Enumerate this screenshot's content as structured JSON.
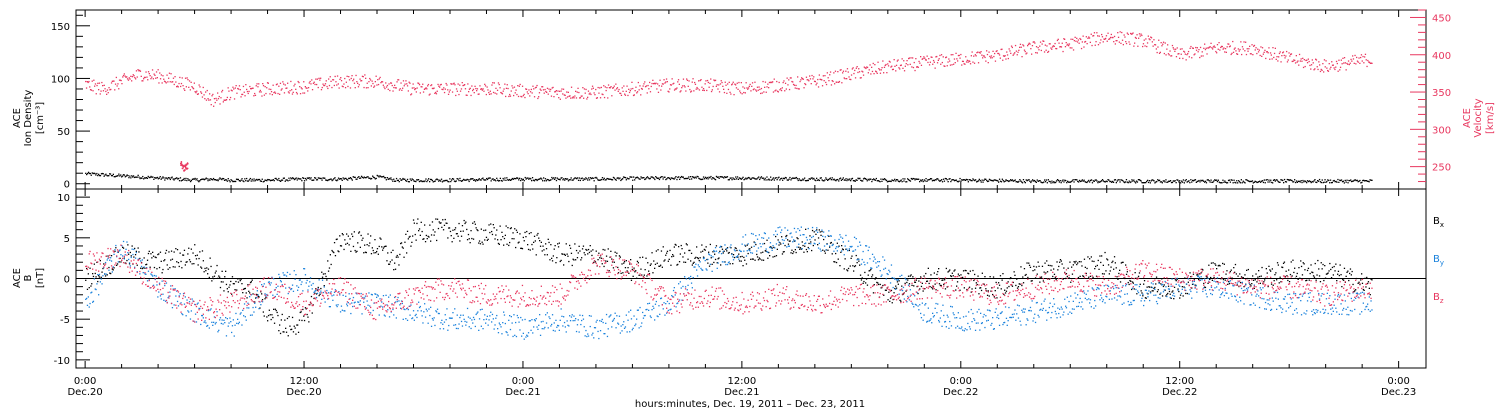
{
  "chart_data": [
    {
      "type": "scatter",
      "panel": "top",
      "ylabel_left": [
        "ACE",
        "Ion Density",
        "[cm⁻³]"
      ],
      "ylabel_right": [
        "ACE",
        "Velocity",
        "[km/s]"
      ],
      "ylim_left": [
        -5,
        165
      ],
      "ylim_right": [
        220,
        460
      ],
      "yticks_left": [
        "0",
        "50",
        "100",
        "150"
      ],
      "yticks_right": [
        "250",
        "300",
        "350",
        "400",
        "450"
      ],
      "series": [
        {
          "color": "#000000",
          "axis": "left",
          "x_hours": [
            0,
            2,
            4,
            5,
            6,
            7,
            8,
            10,
            12,
            14,
            16,
            17,
            18,
            20,
            24,
            28,
            32,
            36,
            40,
            44,
            48,
            52,
            56,
            60,
            64,
            68,
            70.5
          ],
          "y": [
            10,
            8,
            6,
            5,
            4,
            5,
            4,
            4,
            5,
            5,
            7,
            4,
            4,
            4,
            5,
            5,
            6,
            6,
            5,
            4,
            4,
            3,
            3,
            3,
            3,
            3,
            3
          ]
        },
        {
          "color": "#e8375f",
          "axis": "right",
          "x_hours": [
            0,
            1,
            2,
            3,
            4,
            5,
            6,
            7,
            8,
            10,
            12,
            14,
            16,
            17,
            18,
            20,
            22,
            24,
            26,
            28,
            30,
            32,
            34,
            36,
            38,
            40,
            42,
            44,
            46,
            48,
            50,
            52,
            54,
            56,
            58,
            60,
            62,
            64,
            66,
            68,
            70.5
          ],
          "y": [
            360,
            355,
            365,
            375,
            372,
            365,
            358,
            340,
            350,
            355,
            358,
            365,
            365,
            360,
            355,
            355,
            355,
            352,
            350,
            350,
            355,
            360,
            360,
            355,
            360,
            365,
            375,
            385,
            390,
            395,
            400,
            410,
            415,
            425,
            420,
            400,
            410,
            410,
            395,
            385,
            395
          ]
        },
        {
          "color": "#e8375f",
          "axis": "left",
          "x_hours": [
            5.2,
            5.4,
            5.6
          ],
          "y": [
            20,
            15,
            18
          ]
        }
      ]
    },
    {
      "type": "scatter",
      "panel": "bottom",
      "ylabel_left": [
        "ACE",
        "B",
        "[nT]"
      ],
      "ylim": [
        -11,
        11
      ],
      "yticks": [
        "10",
        "5",
        "0",
        "-5",
        "-10"
      ],
      "zero_line": true,
      "series": [
        {
          "name": "Bx",
          "color": "#000000",
          "x_hours": [
            0,
            2,
            4,
            6,
            8,
            9,
            10,
            11,
            12,
            14,
            16,
            17,
            18,
            20,
            24,
            26,
            28,
            30,
            32,
            34,
            36,
            38,
            40,
            42,
            44,
            46,
            48,
            50,
            52,
            54,
            56,
            58,
            60,
            62,
            64,
            66,
            68,
            70.5
          ],
          "y": [
            0,
            3,
            2,
            3,
            -1,
            -1,
            -4,
            -6,
            -5,
            5,
            4,
            2,
            6,
            6,
            5,
            3,
            3,
            1,
            3,
            3,
            3,
            4,
            5,
            2,
            -2,
            0,
            0,
            -1,
            1,
            1,
            2,
            -1,
            -1,
            1,
            0,
            1,
            1,
            -1
          ]
        },
        {
          "name": "By",
          "color": "#1a82dc",
          "x_hours": [
            0,
            2,
            4,
            6,
            8,
            10,
            12,
            14,
            16,
            18,
            20,
            22,
            24,
            26,
            28,
            30,
            32,
            34,
            36,
            38,
            40,
            42,
            44,
            46,
            48,
            50,
            52,
            54,
            56,
            58,
            60,
            62,
            64,
            66,
            68,
            70.5
          ],
          "y": [
            -3,
            4,
            -1,
            -4,
            -6,
            -1,
            0,
            -3,
            -3,
            -4,
            -5,
            -5,
            -6,
            -5,
            -6,
            -5,
            -3,
            2,
            4,
            5,
            5,
            4,
            1,
            -4,
            -5,
            -5,
            -4,
            -3,
            -2,
            -2,
            -1,
            -1,
            -2,
            -3,
            -3,
            -3
          ]
        },
        {
          "name": "Bz",
          "color": "#e8375f",
          "x_hours": [
            0,
            2,
            4,
            6,
            8,
            10,
            12,
            14,
            16,
            18,
            20,
            22,
            24,
            26,
            28,
            30,
            32,
            34,
            36,
            38,
            40,
            42,
            44,
            46,
            48,
            50,
            52,
            54,
            56,
            58,
            60,
            62,
            64,
            66,
            68,
            70.5
          ],
          "y": [
            2,
            3,
            -1,
            -4,
            -3,
            -1,
            -3,
            -1,
            -4,
            -2,
            -1,
            -2,
            -2,
            -2,
            2,
            1,
            -3,
            -2,
            -3,
            -2,
            -3,
            -2,
            -2,
            -1,
            -1,
            -2,
            -1,
            0,
            -1,
            1,
            0,
            0,
            -1,
            -1,
            -2,
            -1
          ]
        }
      ],
      "legend": [
        "B",
        "B",
        "B"
      ],
      "legend_subscripts": [
        "x",
        "y",
        "z"
      ],
      "legend_placement": "right"
    }
  ],
  "x_axis": {
    "range_hours": [
      -0.5,
      73.5
    ],
    "tick_labels": [
      {
        "time": "0:00",
        "date": "Dec.20"
      },
      {
        "time": "12:00",
        "date": "Dec.20"
      },
      {
        "time": "0:00",
        "date": "Dec.21"
      },
      {
        "time": "12:00",
        "date": "Dec.21"
      },
      {
        "time": "0:00",
        "date": "Dec.22"
      },
      {
        "time": "12:00",
        "date": "Dec.22"
      },
      {
        "time": "0:00",
        "date": "Dec.23"
      }
    ],
    "xlabel": "hours:minutes, Dec. 19, 2011 – Dec. 23, 2011"
  }
}
